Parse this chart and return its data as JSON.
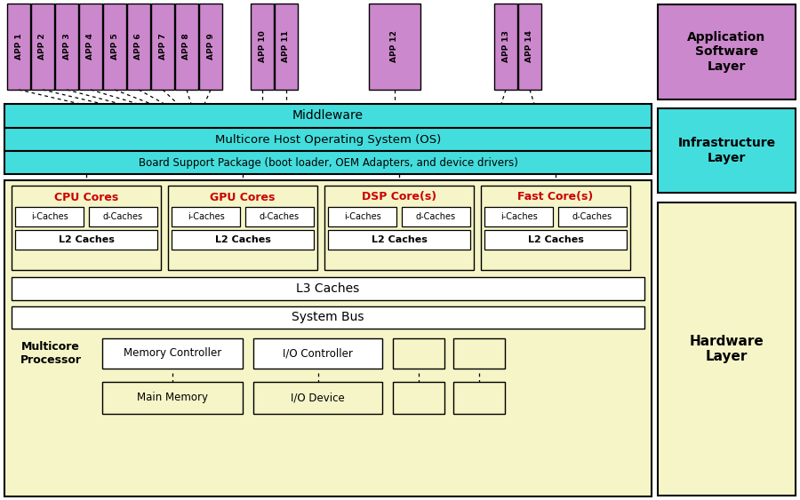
{
  "bg_color": "#ffffff",
  "purple_color": "#cc88cc",
  "cyan_color": "#44dddd",
  "yellow_color": "#f5f5c8",
  "white_color": "#ffffff",
  "red_text": "#cc0000",
  "black_text": "#000000",
  "apps_group1": [
    "APP 1",
    "APP 2",
    "APP 3",
    "APP 4",
    "APP 5",
    "APP 6",
    "APP 7",
    "APP 8",
    "APP 9"
  ],
  "apps_group2": [
    "APP 10",
    "APP 11"
  ],
  "apps_group3": [
    "APP 12"
  ],
  "apps_group4": [
    "APP 13",
    "APP 14"
  ],
  "middleware_text": "Middleware",
  "os_text": "Multicore Host Operating System (OS)",
  "bsp_text": "Board Support Package (boot loader, OEM Adapters, and device drivers)",
  "core_labels": [
    "CPU Cores",
    "GPU Cores",
    "DSP Core(s)",
    "Fast Core(s)"
  ],
  "l3_text": "L3 Caches",
  "sysbus_text": "System Bus",
  "multicore_text": "Multicore\nProcessor",
  "mem_ctrl_text": "Memory Controller",
  "io_ctrl_text": "I/O Controller",
  "main_mem_text": "Main Memory",
  "io_dev_text": "I/O Device",
  "app_sw_layer_text": "Application\nSoftware\nLayer",
  "infra_layer_text": "Infrastructure\nLayer",
  "hw_layer_text": "Hardware\nLayer",
  "icache_text": "i-Caches",
  "dcache_text": "d-Caches",
  "l2_text": "L2 Caches"
}
